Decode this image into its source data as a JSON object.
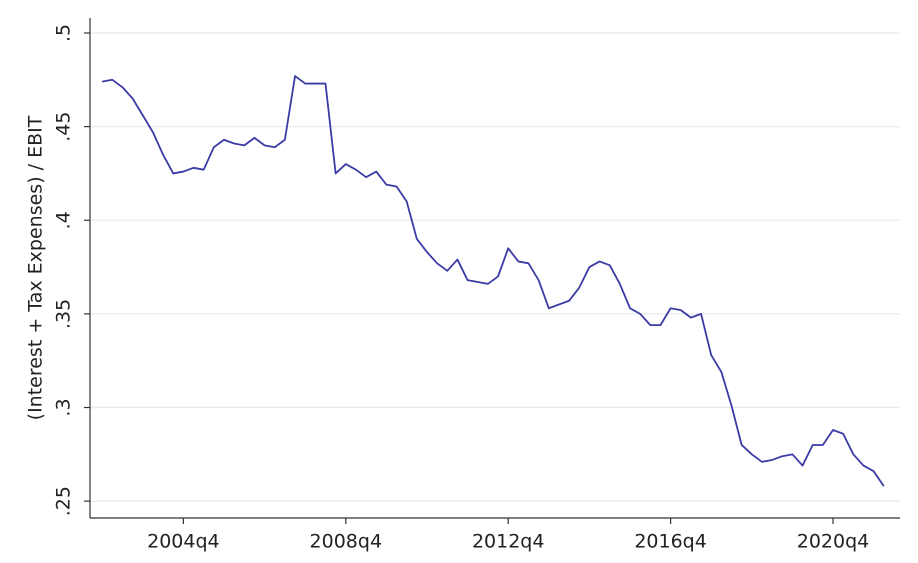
{
  "chart_data": {
    "type": "line",
    "y_label": "(Interest + Tax Expenses) / EBIT",
    "x": [
      2002.75,
      2003,
      2003.25,
      2003.5,
      2003.75,
      2004,
      2004.25,
      2004.5,
      2004.75,
      2005,
      2005.25,
      2005.5,
      2005.75,
      2006,
      2006.25,
      2006.5,
      2006.75,
      2007,
      2007.25,
      2007.5,
      2007.75,
      2008,
      2008.25,
      2008.5,
      2008.75,
      2009,
      2009.25,
      2009.5,
      2009.75,
      2010,
      2010.25,
      2010.5,
      2010.75,
      2011,
      2011.25,
      2011.5,
      2011.75,
      2012,
      2012.25,
      2012.5,
      2012.75,
      2013,
      2013.25,
      2013.5,
      2013.75,
      2014,
      2014.25,
      2014.5,
      2014.75,
      2015,
      2015.25,
      2015.5,
      2015.75,
      2016,
      2016.25,
      2016.5,
      2016.75,
      2017,
      2017.25,
      2017.5,
      2017.75,
      2018,
      2018.25,
      2018.5,
      2018.75,
      2019,
      2019.25,
      2019.5,
      2019.75,
      2020,
      2020.25,
      2020.5,
      2020.75,
      2021,
      2021.25,
      2021.5,
      2021.75,
      2022
    ],
    "series": [
      {
        "color": "#3b3ba6",
        "values": [
          0.474,
          0.475,
          0.471,
          0.465,
          0.456,
          0.447,
          0.435,
          0.425,
          0.426,
          0.428,
          0.427,
          0.439,
          0.443,
          0.441,
          0.44,
          0.444,
          0.44,
          0.439,
          0.443,
          0.477,
          0.473,
          0.473,
          0.473,
          0.425,
          0.43,
          0.427,
          0.423,
          0.426,
          0.419,
          0.418,
          0.41,
          0.39,
          0.383,
          0.377,
          0.373,
          0.379,
          0.368,
          0.367,
          0.366,
          0.37,
          0.385,
          0.378,
          0.377,
          0.368,
          0.353,
          0.355,
          0.357,
          0.364,
          0.375,
          0.378,
          0.376,
          0.366,
          0.353,
          0.35,
          0.344,
          0.344,
          0.353,
          0.352,
          0.348,
          0.35,
          0.328,
          0.319,
          0.301,
          0.28,
          0.275,
          0.271,
          0.272,
          0.274,
          0.275,
          0.269,
          0.28,
          0.28,
          0.288,
          0.286,
          0.275,
          0.269,
          0.266,
          0.258
        ]
      }
    ],
    "xlim": [
      2002.45,
      2022.4
    ],
    "ylim": [
      0.241,
      0.508
    ],
    "xticks": [
      {
        "value": 2004.75,
        "label": "2004q4"
      },
      {
        "value": 2008.75,
        "label": "2008q4"
      },
      {
        "value": 2012.75,
        "label": "2012q4"
      },
      {
        "value": 2016.75,
        "label": "2016q4"
      },
      {
        "value": 2020.75,
        "label": "2020q4"
      }
    ],
    "yticks": [
      {
        "value": 0.25,
        "label": ".25"
      },
      {
        "value": 0.3,
        "label": ".3"
      },
      {
        "value": 0.35,
        "label": ".35"
      },
      {
        "value": 0.4,
        "label": ".4"
      },
      {
        "value": 0.45,
        "label": ".45"
      },
      {
        "value": 0.5,
        "label": ".5"
      }
    ],
    "grid": true
  }
}
